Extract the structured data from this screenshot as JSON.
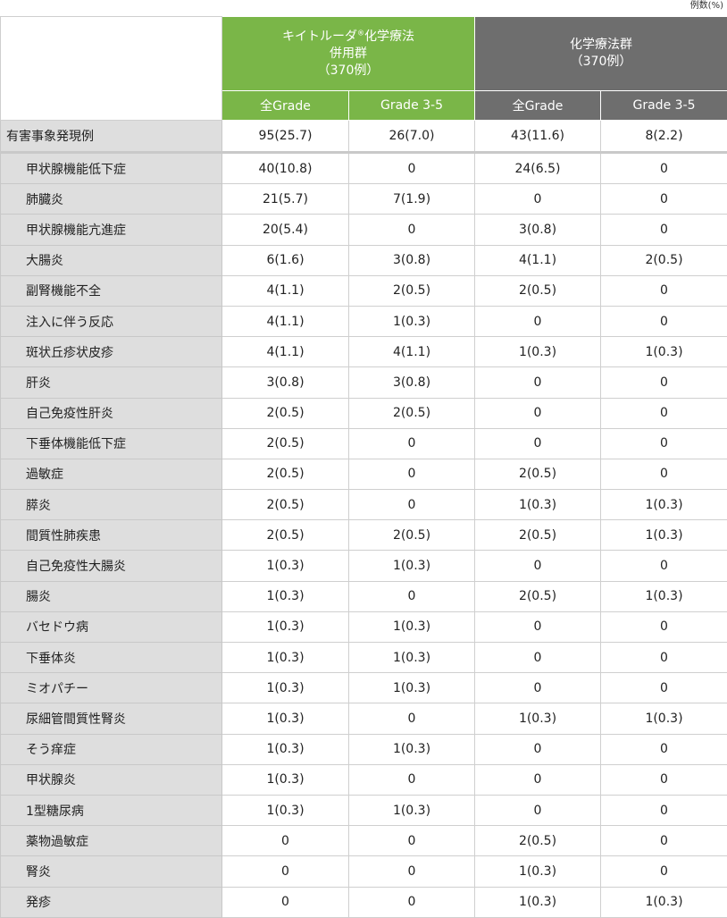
{
  "unit_label": "例数(%)",
  "header": {
    "group1": {
      "line1": "キイトルーダ",
      "reg": "®",
      "line1b": "化学療法",
      "line2": "併用群",
      "line3": "（370例）",
      "color": "#7ab648"
    },
    "group2": {
      "line1": "化学療法群",
      "line2": "（370例）",
      "color": "#6e6e6e"
    },
    "sub": [
      "全Grade",
      "Grade 3-5",
      "全Grade",
      "Grade 3-5"
    ]
  },
  "summary_row": {
    "label": "有害事象発現例",
    "values": [
      "95(25.7)",
      "26(7.0)",
      "43(11.6)",
      "8(2.2)"
    ]
  },
  "rows": [
    {
      "label": "甲状腺機能低下症",
      "values": [
        "40(10.8)",
        "0",
        "24(6.5)",
        "0"
      ]
    },
    {
      "label": "肺臓炎",
      "values": [
        "21(5.7)",
        "7(1.9)",
        "0",
        "0"
      ]
    },
    {
      "label": "甲状腺機能亢進症",
      "values": [
        "20(5.4)",
        "0",
        "3(0.8)",
        "0"
      ]
    },
    {
      "label": "大腸炎",
      "values": [
        "6(1.6)",
        "3(0.8)",
        "4(1.1)",
        "2(0.5)"
      ]
    },
    {
      "label": "副腎機能不全",
      "values": [
        "4(1.1)",
        "2(0.5)",
        "2(0.5)",
        "0"
      ]
    },
    {
      "label": "注入に伴う反応",
      "values": [
        "4(1.1)",
        "1(0.3)",
        "0",
        "0"
      ]
    },
    {
      "label": "斑状丘疹状皮疹",
      "values": [
        "4(1.1)",
        "4(1.1)",
        "1(0.3)",
        "1(0.3)"
      ]
    },
    {
      "label": "肝炎",
      "values": [
        "3(0.8)",
        "3(0.8)",
        "0",
        "0"
      ]
    },
    {
      "label": "自己免疫性肝炎",
      "values": [
        "2(0.5)",
        "2(0.5)",
        "0",
        "0"
      ]
    },
    {
      "label": "下垂体機能低下症",
      "values": [
        "2(0.5)",
        "0",
        "0",
        "0"
      ]
    },
    {
      "label": "過敏症",
      "values": [
        "2(0.5)",
        "0",
        "2(0.5)",
        "0"
      ]
    },
    {
      "label": "膵炎",
      "values": [
        "2(0.5)",
        "0",
        "1(0.3)",
        "1(0.3)"
      ]
    },
    {
      "label": "間質性肺疾患",
      "values": [
        "2(0.5)",
        "2(0.5)",
        "2(0.5)",
        "1(0.3)"
      ]
    },
    {
      "label": "自己免疫性大腸炎",
      "values": [
        "1(0.3)",
        "1(0.3)",
        "0",
        "0"
      ]
    },
    {
      "label": "腸炎",
      "values": [
        "1(0.3)",
        "0",
        "2(0.5)",
        "1(0.3)"
      ]
    },
    {
      "label": "バセドウ病",
      "values": [
        "1(0.3)",
        "1(0.3)",
        "0",
        "0"
      ]
    },
    {
      "label": "下垂体炎",
      "values": [
        "1(0.3)",
        "1(0.3)",
        "0",
        "0"
      ]
    },
    {
      "label": "ミオパチー",
      "values": [
        "1(0.3)",
        "1(0.3)",
        "0",
        "0"
      ]
    },
    {
      "label": "尿細管間質性腎炎",
      "values": [
        "1(0.3)",
        "0",
        "1(0.3)",
        "1(0.3)"
      ]
    },
    {
      "label": "そう痒症",
      "values": [
        "1(0.3)",
        "1(0.3)",
        "0",
        "0"
      ]
    },
    {
      "label": "甲状腺炎",
      "values": [
        "1(0.3)",
        "0",
        "0",
        "0"
      ]
    },
    {
      "label": "1型糖尿病",
      "values": [
        "1(0.3)",
        "1(0.3)",
        "0",
        "0"
      ]
    },
    {
      "label": "薬物過敏症",
      "values": [
        "0",
        "0",
        "2(0.5)",
        "0"
      ]
    },
    {
      "label": "腎炎",
      "values": [
        "0",
        "0",
        "1(0.3)",
        "0"
      ]
    },
    {
      "label": "発疹",
      "values": [
        "0",
        "0",
        "1(0.3)",
        "1(0.3)"
      ]
    }
  ]
}
